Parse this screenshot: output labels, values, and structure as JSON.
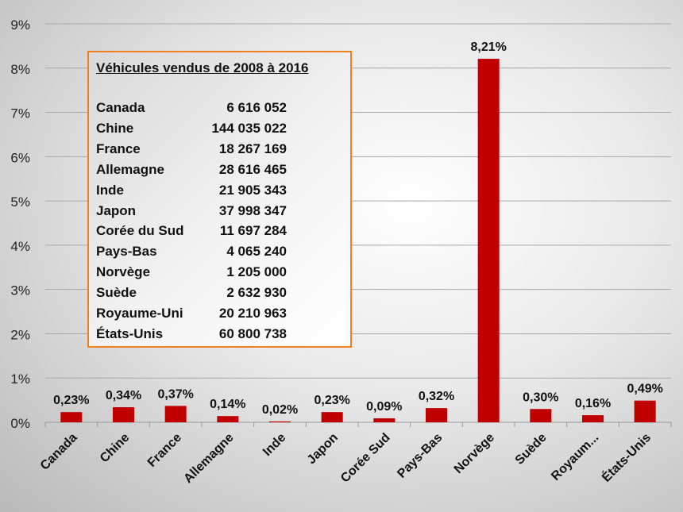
{
  "chart_data": {
    "type": "bar",
    "categories": [
      "Canada",
      "Chine",
      "France",
      "Allemagne",
      "Inde",
      "Japon",
      "Corée Sud",
      "Pays-Bas",
      "Norvège",
      "Suède",
      "Royaum...",
      "États-Unis"
    ],
    "values": [
      0.23,
      0.34,
      0.37,
      0.14,
      0.02,
      0.23,
      0.09,
      0.32,
      8.21,
      0.3,
      0.16,
      0.49
    ],
    "data_labels": [
      "0,23%",
      "0,34%",
      "0,37%",
      "0,14%",
      "0,02%",
      "0,23%",
      "0,09%",
      "0,32%",
      "8,21%",
      "0,30%",
      "0,16%",
      "0,49%"
    ],
    "ylim": [
      0,
      9
    ],
    "yticks": [
      "0%",
      "1%",
      "2%",
      "3%",
      "4%",
      "5%",
      "6%",
      "7%",
      "8%",
      "9%"
    ],
    "grid": true,
    "bar_color": "#c00000"
  },
  "table": {
    "title": "Véhicules vendus de 2008 à 2016",
    "border_color": "#f07f1e",
    "rows": [
      {
        "country": "Canada",
        "value": "6 616 052"
      },
      {
        "country": "Chine",
        "value": "144 035 022"
      },
      {
        "country": "France",
        "value": "18 267 169"
      },
      {
        "country": "Allemagne",
        "value": "28 616 465"
      },
      {
        "country": "Inde",
        "value": "21 905 343"
      },
      {
        "country": "Japon",
        "value": "37 998 347"
      },
      {
        "country": "Corée du Sud",
        "value": "11 697 284"
      },
      {
        "country": "Pays-Bas",
        "value": "4 065 240"
      },
      {
        "country": "Norvège",
        "value": "1 205 000"
      },
      {
        "country": "Suède",
        "value": "2 632 930"
      },
      {
        "country": "Royaume-Uni",
        "value": "20 210 963"
      },
      {
        "country": "États-Unis",
        "value": "60 800 738"
      }
    ]
  }
}
